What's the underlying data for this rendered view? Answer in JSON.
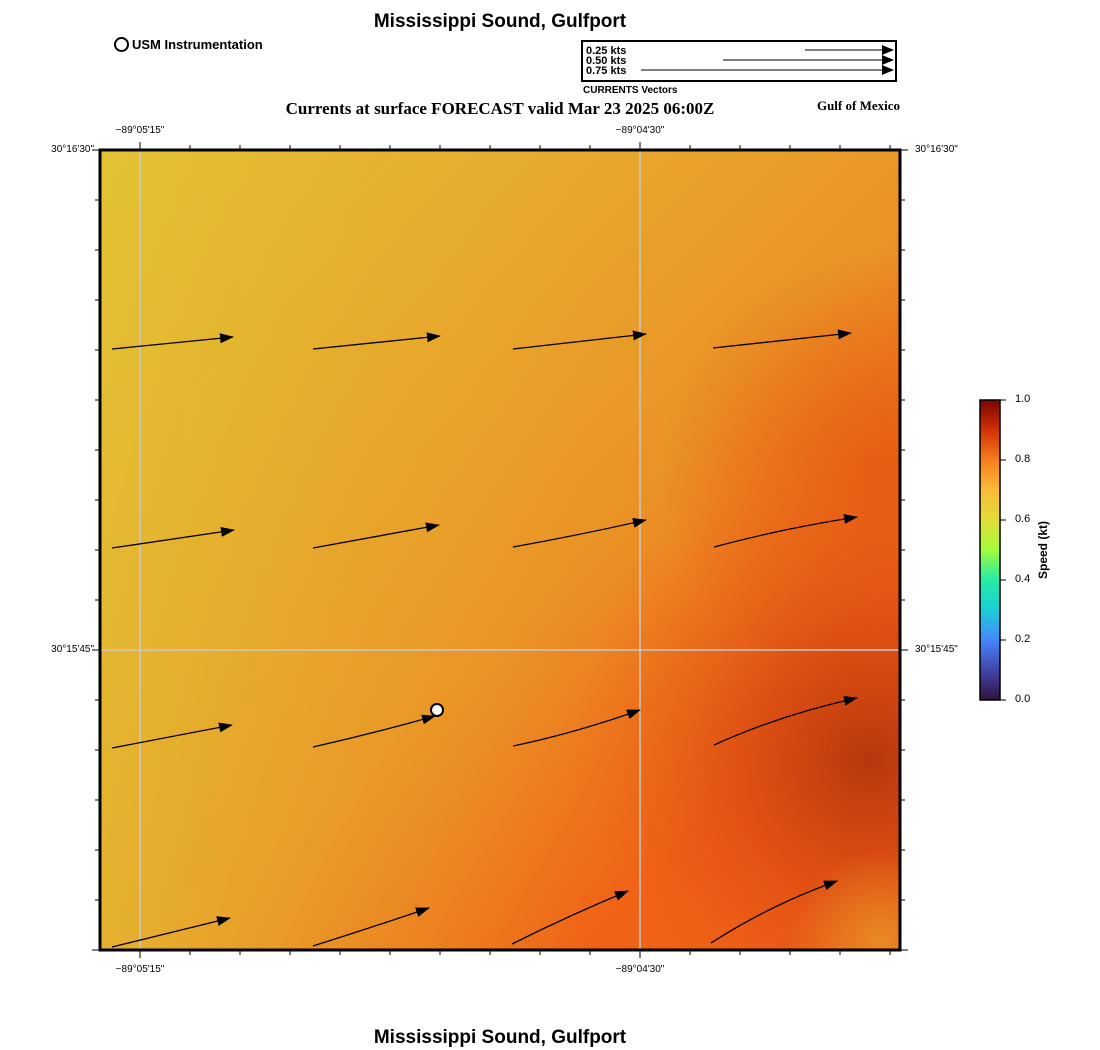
{
  "header": {
    "title": "Mississippi Sound, Gulfport",
    "subtitle": "Currents at surface FORECAST valid Mar 23 2025 06:00Z",
    "region": "Gulf of Mexico",
    "footer_title": "Mississippi Sound, Gulfport"
  },
  "legend": {
    "station_label": "USM Instrumentation",
    "vector_scale": [
      {
        "label": "0.25 kts",
        "speed": 0.25
      },
      {
        "label": "0.50 kts",
        "speed": 0.5
      },
      {
        "label": "0.75 kts",
        "speed": 0.75
      }
    ],
    "vector_caption": "CURRENTS Vectors"
  },
  "axes": {
    "lon_ticks": [
      "−89°05'15\"",
      "−89°04'30\""
    ],
    "lat_ticks": [
      "30°16'30\"",
      "30°15'45\""
    ]
  },
  "colorbar": {
    "title": "Speed (kt)",
    "ticks": [
      "0.0",
      "0.2",
      "0.4",
      "0.6",
      "0.8",
      "1.0"
    ],
    "colors": [
      "#30123b",
      "#4686fb",
      "#1ae4b6",
      "#a2fc3c",
      "#fabb39",
      "#e4460a",
      "#7a0403"
    ]
  },
  "colors": {
    "field_low": "#e3c334",
    "field_mid": "#ea9326",
    "field_high": "#f05e16",
    "field_max": "#b8380e",
    "grid": "#c8c8c8"
  }
}
